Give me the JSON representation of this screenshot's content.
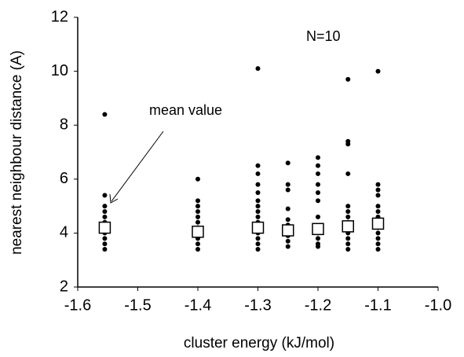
{
  "chart_data": {
    "type": "scatter",
    "xlabel": "cluster energy (kJ/mol)",
    "ylabel": "nearest neighbour distance (A)",
    "annotations": [
      "N=10",
      "mean value"
    ],
    "xlim": [
      -1.6,
      -1.0
    ],
    "xticks": [
      -1.6,
      -1.5,
      -1.4,
      -1.3,
      -1.2,
      -1.1,
      {
        "value": -1,
        "label": "-1.0"
      }
    ],
    "ylim": [
      2,
      12
    ],
    "yticks": [
      2,
      4,
      6,
      8,
      10,
      12
    ],
    "series": [
      {
        "color": "#000000",
        "marker": "dot",
        "x": [
          -1.555,
          -1.555,
          -1.555,
          -1.555,
          -1.555,
          -1.555,
          -1.555,
          -1.555,
          -1.555,
          -1.555,
          -1.555,
          -1.4,
          -1.4,
          -1.4,
          -1.4,
          -1.4,
          -1.4,
          -1.4,
          -1.4,
          -1.4,
          -1.4,
          -1.4,
          -1.3,
          -1.3,
          -1.3,
          -1.3,
          -1.3,
          -1.3,
          -1.3,
          -1.3,
          -1.3,
          -1.3,
          -1.3,
          -1.3,
          -1.3,
          -1.3,
          -1.3,
          -1.25,
          -1.25,
          -1.25,
          -1.25,
          -1.25,
          -1.25,
          -1.25,
          -1.25,
          -1.25,
          -1.25,
          -1.2,
          -1.2,
          -1.2,
          -1.2,
          -1.2,
          -1.2,
          -1.2,
          -1.2,
          -1.2,
          -1.2,
          -1.2,
          -1.2,
          -1.15,
          -1.15,
          -1.15,
          -1.15,
          -1.15,
          -1.15,
          -1.15,
          -1.15,
          -1.15,
          -1.15,
          -1.15,
          -1.15,
          -1.15,
          -1.1,
          -1.1,
          -1.1,
          -1.1,
          -1.1,
          -1.1,
          -1.1,
          -1.1,
          -1.1,
          -1.1,
          -1.1,
          -1.1,
          -1.1
        ],
        "values": [
          8.4,
          5.4,
          5.0,
          4.8,
          4.6,
          4.4,
          4.2,
          4.0,
          3.8,
          3.6,
          3.4,
          6.0,
          5.2,
          5.0,
          4.8,
          4.6,
          4.4,
          4.2,
          4.0,
          3.8,
          3.6,
          3.4,
          10.1,
          6.5,
          6.2,
          5.8,
          5.5,
          5.2,
          5.0,
          4.8,
          4.6,
          4.4,
          4.2,
          4.0,
          3.8,
          3.6,
          3.4,
          6.6,
          5.8,
          5.6,
          4.9,
          4.5,
          4.3,
          4.1,
          3.9,
          3.7,
          3.5,
          6.8,
          6.5,
          6.2,
          5.8,
          5.5,
          5.2,
          4.6,
          4.2,
          4.0,
          3.8,
          3.6,
          3.5,
          9.7,
          7.4,
          7.3,
          6.2,
          5.0,
          4.8,
          4.6,
          4.4,
          4.2,
          4.0,
          3.8,
          3.6,
          3.4,
          10.0,
          5.8,
          5.6,
          5.4,
          5.0,
          4.8,
          4.6,
          4.4,
          4.2,
          4.0,
          3.8,
          3.6,
          3.4
        ]
      },
      {
        "color": "#ffffff",
        "marker": "square",
        "x": [
          -1.555,
          -1.4,
          -1.3,
          -1.25,
          -1.2,
          -1.15,
          -1.1
        ],
        "values": [
          4.2,
          4.05,
          4.2,
          4.1,
          4.15,
          4.25,
          4.35
        ]
      }
    ]
  }
}
